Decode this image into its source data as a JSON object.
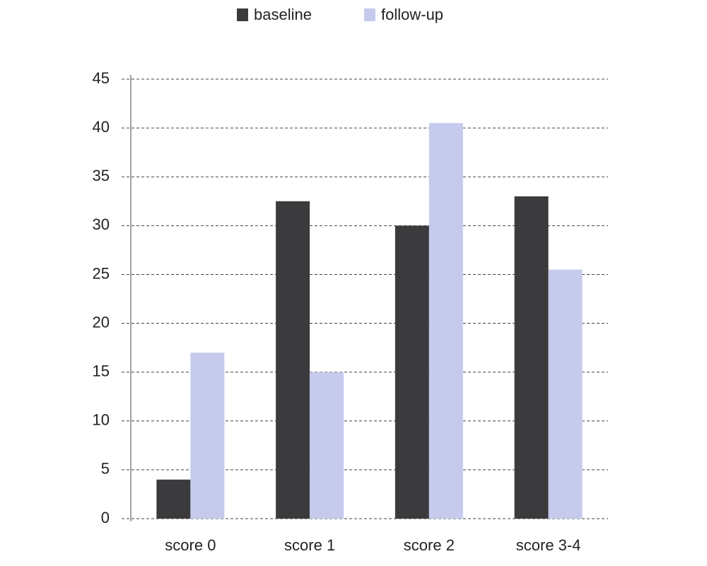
{
  "chart_data": {
    "type": "bar",
    "categories": [
      "score 0",
      "score 1",
      "score 2",
      "score 3-4"
    ],
    "series": [
      {
        "name": "baseline",
        "color": "#3b3b3d",
        "values": [
          4,
          32.5,
          30,
          33
        ]
      },
      {
        "name": "follow-up",
        "color": "#c6cbed",
        "values": [
          17,
          15,
          40.5,
          25.5
        ]
      }
    ],
    "ylim": [
      0,
      45
    ],
    "yticks": [
      0,
      5,
      10,
      15,
      20,
      25,
      30,
      35,
      40,
      45
    ],
    "grid": true,
    "legend": "top"
  }
}
